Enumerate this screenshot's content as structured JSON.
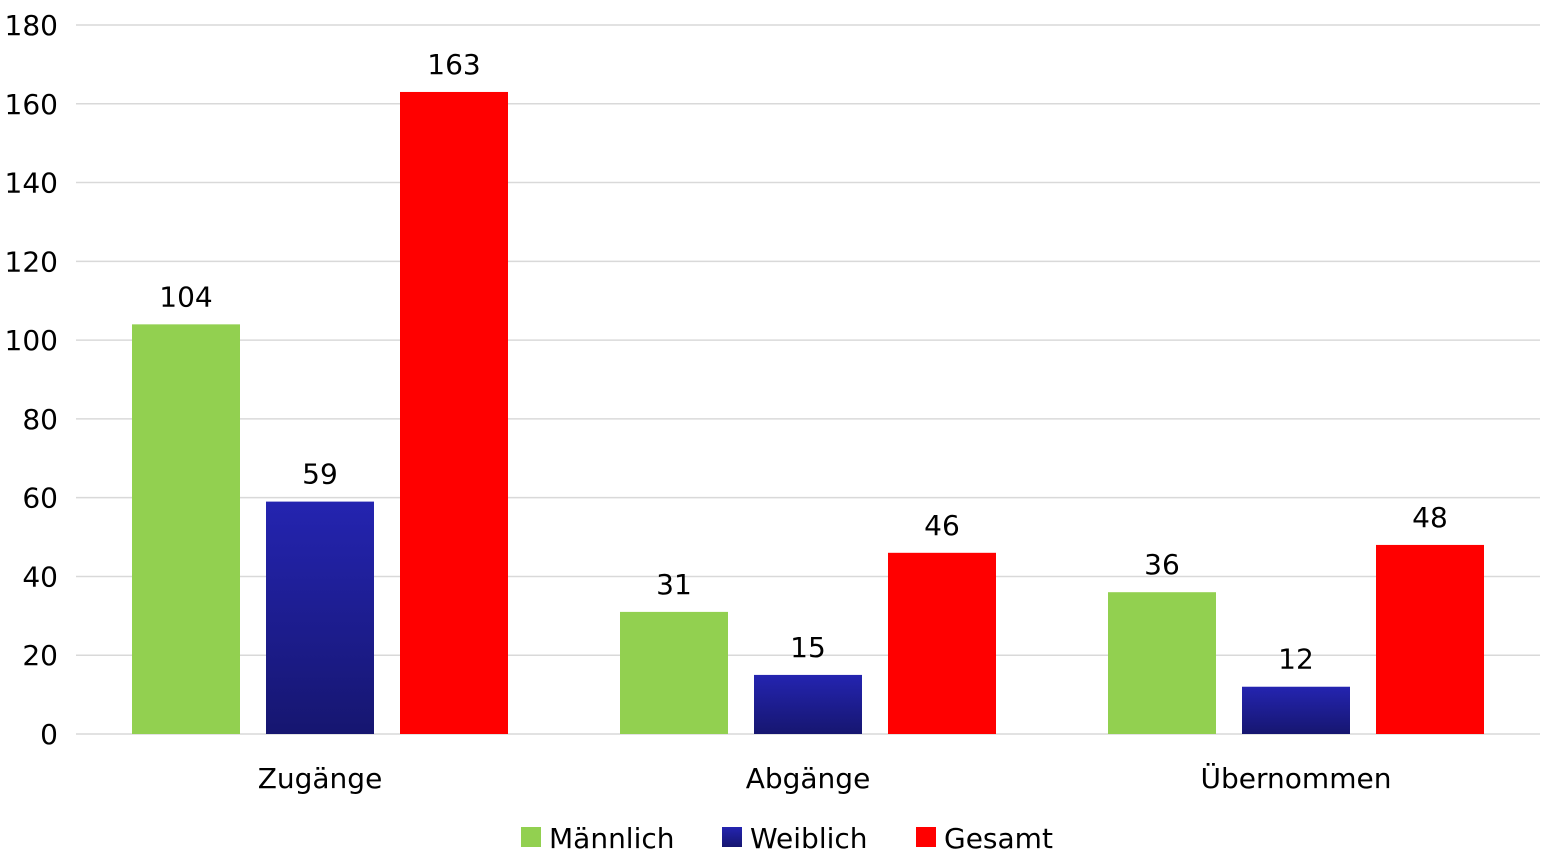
{
  "chart_data": {
    "type": "bar",
    "categories": [
      "Zugänge",
      "Abgänge",
      "Übernommen"
    ],
    "series": [
      {
        "name": "Männlich",
        "values": [
          104,
          31,
          36
        ],
        "color": "#92d050"
      },
      {
        "name": "Weiblich",
        "values": [
          59,
          15,
          12
        ],
        "color": "#1f1f9a"
      },
      {
        "name": "Gesamt",
        "values": [
          163,
          46,
          48
        ],
        "color": "#ff0000"
      }
    ],
    "ylim": [
      0,
      180
    ],
    "yticks": [
      0,
      20,
      40,
      60,
      80,
      100,
      120,
      140,
      160,
      180
    ],
    "grid": true,
    "legend_position": "bottom",
    "data_labels": true,
    "title": "",
    "xlabel": "",
    "ylabel": ""
  }
}
